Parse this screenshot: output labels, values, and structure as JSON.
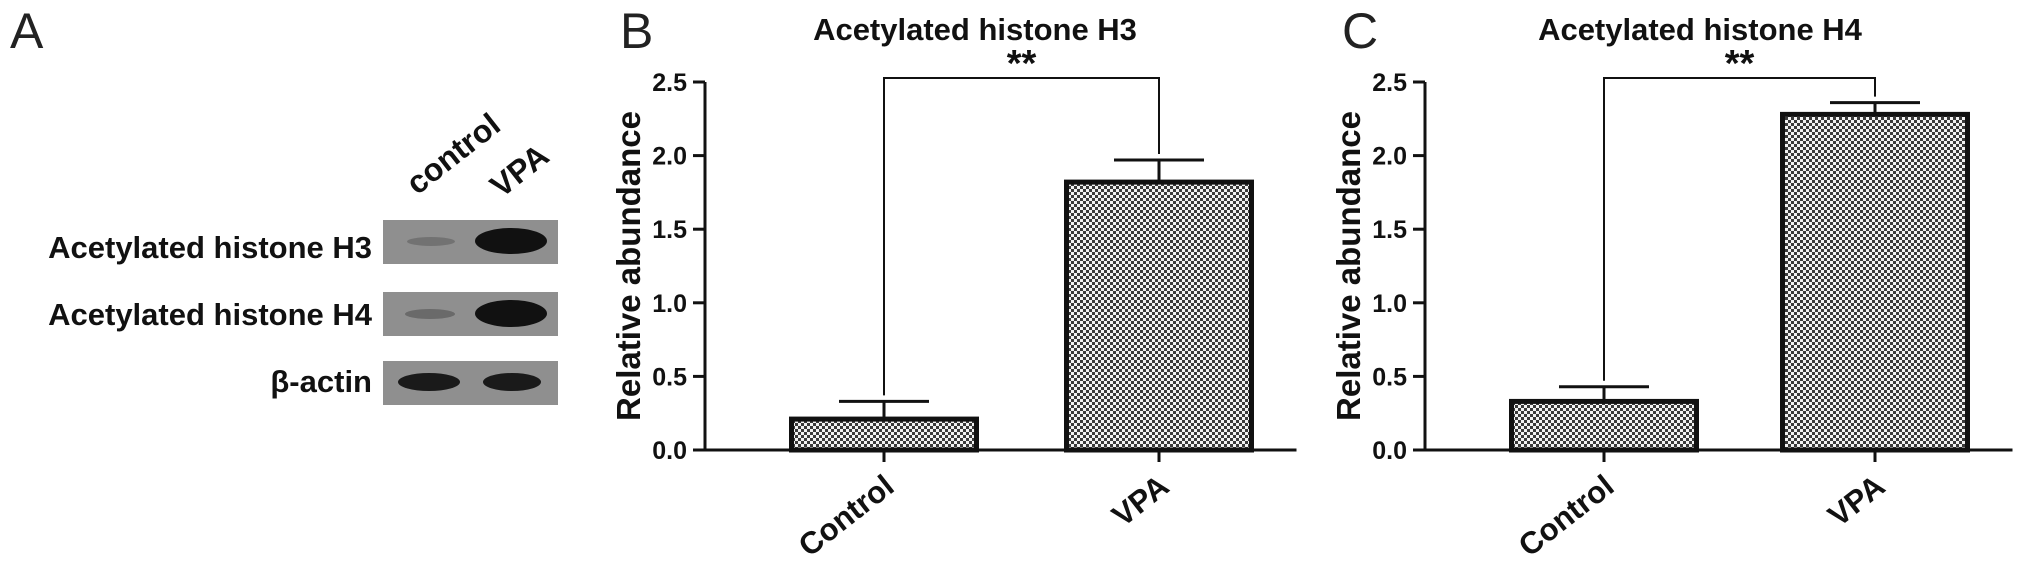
{
  "panels": {
    "a": {
      "letter": "A",
      "lanes": [
        "control",
        "VPA"
      ],
      "rows": [
        {
          "label": "Acetylated histone H3"
        },
        {
          "label": "Acetylated histone H4"
        },
        {
          "label": "β-actin"
        }
      ]
    },
    "b": {
      "letter": "B"
    },
    "c": {
      "letter": "C"
    }
  },
  "chart_data": [
    {
      "type": "bar",
      "title": "Acetylated histone H3",
      "xlabel": "",
      "ylabel": "Relative abundance",
      "categories": [
        "Control",
        "VPA"
      ],
      "values": [
        0.21,
        1.82
      ],
      "errors": [
        0.12,
        0.15
      ],
      "ylim": [
        0,
        2.5
      ],
      "yticks": [
        "0.0",
        "0.5",
        "1.0",
        "1.5",
        "2.0",
        "2.5"
      ],
      "significance": "**",
      "bar_fill": "checkered gray",
      "grid": false
    },
    {
      "type": "bar",
      "title": "Acetylated histone H4",
      "xlabel": "",
      "ylabel": "Relative abundance",
      "categories": [
        "Control",
        "VPA"
      ],
      "values": [
        0.33,
        2.28
      ],
      "errors": [
        0.1,
        0.08
      ],
      "ylim": [
        0,
        2.5
      ],
      "yticks": [
        "0.0",
        "0.5",
        "1.0",
        "1.5",
        "2.0",
        "2.5"
      ],
      "significance": "**",
      "bar_fill": "checkered gray",
      "grid": false
    }
  ]
}
